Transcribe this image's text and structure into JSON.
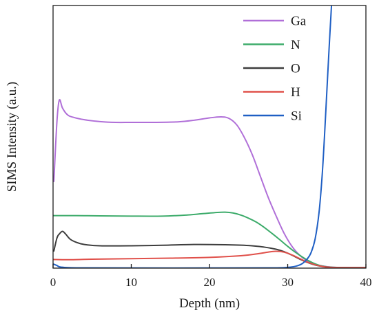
{
  "chart_data": {
    "type": "line",
    "title": "",
    "xlabel": "Depth (nm)",
    "ylabel": "SIMS Intensity (a.u.)",
    "xlim": [
      0,
      40
    ],
    "ylim": [
      0,
      100
    ],
    "xticks": [
      0,
      10,
      20,
      30,
      40
    ],
    "grid": false,
    "legend_position": "top-right",
    "series": [
      {
        "name": "Ga",
        "color": "#b06fd8",
        "points": [
          [
            0.1,
            33
          ],
          [
            0.5,
            56
          ],
          [
            0.8,
            64
          ],
          [
            1.2,
            61
          ],
          [
            1.8,
            58.5
          ],
          [
            2.5,
            57.5
          ],
          [
            4,
            56.5
          ],
          [
            6,
            55.8
          ],
          [
            8,
            55.5
          ],
          [
            10,
            55.5
          ],
          [
            13,
            55.5
          ],
          [
            16,
            55.7
          ],
          [
            18,
            56.3
          ],
          [
            20,
            57.2
          ],
          [
            21.5,
            57.6
          ],
          [
            22.5,
            57
          ],
          [
            23.5,
            54.5
          ],
          [
            24.5,
            49.5
          ],
          [
            25.5,
            43
          ],
          [
            26.5,
            35
          ],
          [
            27.5,
            27
          ],
          [
            28.5,
            20
          ],
          [
            29.5,
            13.5
          ],
          [
            30.5,
            8.5
          ],
          [
            31.5,
            5
          ],
          [
            32.5,
            2.8
          ],
          [
            33.5,
            1.5
          ],
          [
            34.5,
            0.8
          ],
          [
            35.5,
            0.4
          ],
          [
            37,
            0.2
          ],
          [
            40,
            0.2
          ]
        ]
      },
      {
        "name": "N",
        "color": "#3cab6a",
        "points": [
          [
            0,
            20
          ],
          [
            3,
            20
          ],
          [
            6,
            19.9
          ],
          [
            10,
            19.8
          ],
          [
            14,
            19.8
          ],
          [
            17,
            20.2
          ],
          [
            19,
            20.7
          ],
          [
            21,
            21.2
          ],
          [
            22,
            21.3
          ],
          [
            23,
            21
          ],
          [
            24,
            20.2
          ],
          [
            25,
            19
          ],
          [
            26,
            17.5
          ],
          [
            27,
            15.5
          ],
          [
            28,
            13.2
          ],
          [
            29,
            10.8
          ],
          [
            30,
            8.3
          ],
          [
            31,
            6
          ],
          [
            32,
            4
          ],
          [
            33,
            2.3
          ],
          [
            34,
            1.1
          ],
          [
            35,
            0.5
          ],
          [
            36,
            0.3
          ],
          [
            38,
            0.2
          ],
          [
            40,
            0.2
          ]
        ]
      },
      {
        "name": "O",
        "color": "#3d3d3d",
        "points": [
          [
            0.1,
            6.5
          ],
          [
            0.5,
            11.5
          ],
          [
            0.8,
            13
          ],
          [
            1.2,
            14
          ],
          [
            1.6,
            13
          ],
          [
            2.2,
            11
          ],
          [
            3,
            9.8
          ],
          [
            4,
            9
          ],
          [
            6,
            8.5
          ],
          [
            10,
            8.5
          ],
          [
            14,
            8.7
          ],
          [
            18,
            9
          ],
          [
            22,
            8.9
          ],
          [
            25,
            8.6
          ],
          [
            27,
            8
          ],
          [
            28.5,
            7.2
          ],
          [
            29.5,
            6.3
          ],
          [
            30.5,
            5
          ],
          [
            31.5,
            3.5
          ],
          [
            32.5,
            2.2
          ],
          [
            33.5,
            1.2
          ],
          [
            34.5,
            0.6
          ],
          [
            35.5,
            0.3
          ],
          [
            37,
            0.2
          ],
          [
            40,
            0.2
          ]
        ]
      },
      {
        "name": "H",
        "color": "#e0504a",
        "points": [
          [
            0,
            3.3
          ],
          [
            2,
            3.2
          ],
          [
            5,
            3.4
          ],
          [
            10,
            3.6
          ],
          [
            15,
            3.8
          ],
          [
            20,
            4.1
          ],
          [
            24,
            4.7
          ],
          [
            26,
            5.4
          ],
          [
            27.5,
            6.1
          ],
          [
            28.5,
            6.4
          ],
          [
            29.5,
            6.1
          ],
          [
            30.5,
            5.1
          ],
          [
            31.5,
            3.7
          ],
          [
            32.5,
            2.3
          ],
          [
            33.5,
            1.3
          ],
          [
            34.5,
            0.6
          ],
          [
            35.5,
            0.3
          ],
          [
            37,
            0.2
          ],
          [
            40,
            0.2
          ]
        ]
      },
      {
        "name": "Si",
        "color": "#1f5fc4",
        "points": [
          [
            0,
            1.6
          ],
          [
            0.5,
            1
          ],
          [
            1,
            0.4
          ],
          [
            3,
            0.1
          ],
          [
            10,
            0.05
          ],
          [
            20,
            0.05
          ],
          [
            28,
            0.1
          ],
          [
            30,
            0.3
          ],
          [
            31,
            0.7
          ],
          [
            31.8,
            1.6
          ],
          [
            32.5,
            3.5
          ],
          [
            33,
            6
          ],
          [
            33.5,
            11
          ],
          [
            34,
            21
          ],
          [
            34.4,
            35
          ],
          [
            34.7,
            50
          ],
          [
            35,
            67
          ],
          [
            35.3,
            84
          ],
          [
            35.6,
            100
          ]
        ]
      }
    ]
  }
}
